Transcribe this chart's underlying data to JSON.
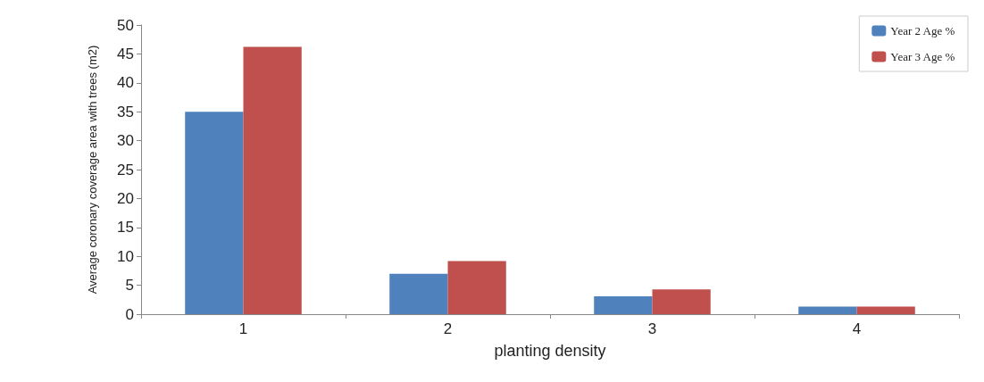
{
  "chart_data": {
    "type": "bar",
    "xlabel": "planting density",
    "ylabel": "Average coronary coverage area with trees (m2)",
    "categories": [
      "1",
      "2",
      "3",
      "4"
    ],
    "series": [
      {
        "name": "Year 2 Age %",
        "color": "#4f81bd",
        "values": [
          35,
          7,
          3.1,
          1.3
        ]
      },
      {
        "name": "Year 3 Age %",
        "color": "#c0504d",
        "values": [
          46.2,
          9.2,
          4.3,
          1.3
        ]
      }
    ],
    "ylim": [
      0,
      50
    ],
    "yticks": [
      0,
      5,
      10,
      15,
      20,
      25,
      30,
      35,
      40,
      45,
      50
    ],
    "grid": false,
    "legend": "top right"
  }
}
